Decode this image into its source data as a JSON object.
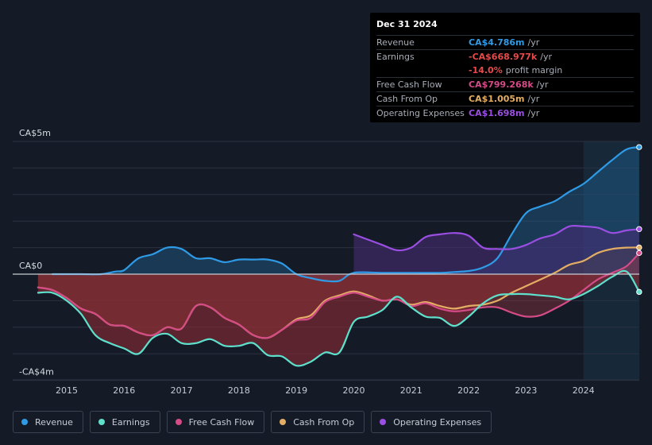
{
  "tooltip": {
    "date": "Dec 31 2024",
    "rows": [
      {
        "label": "Revenue",
        "value": "CA$4.786m",
        "unit": "/yr",
        "color": "#2f9ae6"
      },
      {
        "label": "Earnings",
        "value": "-CA$668.977k",
        "unit": "/yr",
        "color": "#e84a4a"
      },
      {
        "label": "",
        "value": "-14.0%",
        "unit": "profit margin",
        "color": "#e84a4a"
      },
      {
        "label": "Free Cash Flow",
        "value": "CA$799.268k",
        "unit": "/yr",
        "color": "#d44b87"
      },
      {
        "label": "Cash From Op",
        "value": "CA$1.005m",
        "unit": "/yr",
        "color": "#e3ad64"
      },
      {
        "label": "Operating Expenses",
        "value": "CA$1.698m",
        "unit": "/yr",
        "color": "#9a4fe2"
      }
    ]
  },
  "legend": [
    {
      "label": "Revenue",
      "color": "#2f9ae6"
    },
    {
      "label": "Earnings",
      "color": "#5fe0cc"
    },
    {
      "label": "Free Cash Flow",
      "color": "#d44b87"
    },
    {
      "label": "Cash From Op",
      "color": "#e3ad64"
    },
    {
      "label": "Operating Expenses",
      "color": "#9a4fe2"
    }
  ],
  "chart_data": {
    "type": "line",
    "title": "",
    "y_unit": "CA$m",
    "ylim": [
      -4,
      5
    ],
    "y_tick_labels": [
      {
        "value": 5,
        "label": "CA$5m"
      },
      {
        "value": 0,
        "label": "CA$0"
      },
      {
        "value": -4,
        "label": "-CA$4m"
      }
    ],
    "xlim": [
      2014.5,
      2025.0
    ],
    "x_ticks": [
      2015,
      2016,
      2017,
      2018,
      2019,
      2020,
      2021,
      2022,
      2023,
      2024
    ],
    "x_tick_labels": [
      "2015",
      "2016",
      "2017",
      "2018",
      "2019",
      "2020",
      "2021",
      "2022",
      "2023",
      "2024"
    ],
    "highlight_from": 2024.0,
    "series": [
      {
        "name": "Revenue",
        "color": "#2f9ae6",
        "x": [
          2014.75,
          2015.25,
          2015.6,
          2015.85,
          2016.0,
          2016.25,
          2016.5,
          2016.75,
          2017.0,
          2017.25,
          2017.5,
          2017.75,
          2018.0,
          2018.25,
          2018.5,
          2018.75,
          2019.0,
          2019.25,
          2019.5,
          2019.75,
          2020.0,
          2020.5,
          2021.0,
          2021.5,
          2021.75,
          2022.0,
          2022.25,
          2022.5,
          2022.75,
          2023.0,
          2023.25,
          2023.5,
          2023.75,
          2024.0,
          2024.25,
          2024.5,
          2024.75,
          2024.97
        ],
        "y": [
          0.0,
          0.0,
          0.0,
          0.1,
          0.15,
          0.6,
          0.75,
          1.0,
          0.95,
          0.6,
          0.6,
          0.45,
          0.55,
          0.55,
          0.55,
          0.4,
          0.0,
          -0.15,
          -0.25,
          -0.25,
          0.05,
          0.05,
          0.05,
          0.05,
          0.08,
          0.12,
          0.25,
          0.6,
          1.5,
          2.3,
          2.55,
          2.75,
          3.1,
          3.4,
          3.85,
          4.3,
          4.7,
          4.786
        ]
      },
      {
        "name": "Operating Expenses",
        "color": "#9a4fe2",
        "x": [
          2020.0,
          2020.25,
          2020.5,
          2020.75,
          2021.0,
          2021.25,
          2021.5,
          2021.75,
          2022.0,
          2022.25,
          2022.5,
          2022.75,
          2023.0,
          2023.25,
          2023.5,
          2023.75,
          2024.0,
          2024.25,
          2024.5,
          2024.75,
          2024.97
        ],
        "y": [
          1.5,
          1.3,
          1.1,
          0.9,
          1.0,
          1.4,
          1.5,
          1.55,
          1.45,
          1.0,
          0.95,
          0.95,
          1.1,
          1.35,
          1.5,
          1.8,
          1.8,
          1.75,
          1.55,
          1.65,
          1.698
        ]
      },
      {
        "name": "Cash From Op",
        "color": "#e3ad64",
        "x": [
          2014.5,
          2014.75,
          2015.0,
          2015.25,
          2015.5,
          2015.75,
          2016.0,
          2016.25,
          2016.5,
          2016.75,
          2017.0,
          2017.25,
          2017.5,
          2017.75,
          2018.0,
          2018.25,
          2018.5,
          2018.75,
          2019.0,
          2019.25,
          2019.5,
          2019.75,
          2020.0,
          2020.25,
          2020.5,
          2020.75,
          2021.0,
          2021.25,
          2021.5,
          2021.75,
          2022.0,
          2022.25,
          2022.5,
          2022.75,
          2023.0,
          2023.25,
          2023.5,
          2023.75,
          2024.0,
          2024.25,
          2024.5,
          2024.75,
          2024.97
        ],
        "y": [
          -0.5,
          -0.6,
          -0.9,
          -1.3,
          -1.5,
          -1.9,
          -1.95,
          -2.2,
          -2.3,
          -2.0,
          -2.05,
          -1.2,
          -1.25,
          -1.65,
          -1.9,
          -2.3,
          -2.4,
          -2.1,
          -1.7,
          -1.55,
          -1.0,
          -0.8,
          -0.65,
          -0.8,
          -1.0,
          -0.95,
          -1.15,
          -1.05,
          -1.2,
          -1.3,
          -1.2,
          -1.15,
          -1.0,
          -0.7,
          -0.45,
          -0.2,
          0.05,
          0.35,
          0.5,
          0.8,
          0.95,
          1.0,
          1.005
        ]
      },
      {
        "name": "Free Cash Flow",
        "color": "#d44b87",
        "x": [
          2014.5,
          2014.75,
          2015.0,
          2015.25,
          2015.5,
          2015.75,
          2016.0,
          2016.25,
          2016.5,
          2016.75,
          2017.0,
          2017.25,
          2017.5,
          2017.75,
          2018.0,
          2018.25,
          2018.5,
          2018.75,
          2019.0,
          2019.25,
          2019.5,
          2019.75,
          2020.0,
          2020.25,
          2020.5,
          2020.75,
          2021.0,
          2021.25,
          2021.5,
          2021.75,
          2022.0,
          2022.25,
          2022.5,
          2022.75,
          2023.0,
          2023.25,
          2023.5,
          2023.75,
          2024.0,
          2024.25,
          2024.5,
          2024.75,
          2024.97
        ],
        "y": [
          -0.5,
          -0.6,
          -0.9,
          -1.3,
          -1.5,
          -1.9,
          -1.95,
          -2.2,
          -2.3,
          -2.0,
          -2.05,
          -1.2,
          -1.25,
          -1.65,
          -1.9,
          -2.3,
          -2.4,
          -2.1,
          -1.75,
          -1.65,
          -1.05,
          -0.85,
          -0.7,
          -0.85,
          -1.0,
          -0.95,
          -1.2,
          -1.1,
          -1.3,
          -1.4,
          -1.35,
          -1.25,
          -1.25,
          -1.45,
          -1.6,
          -1.55,
          -1.3,
          -1.0,
          -0.6,
          -0.2,
          0.05,
          0.3,
          0.799
        ]
      },
      {
        "name": "Earnings",
        "color": "#5fe0cc",
        "x": [
          2014.5,
          2014.75,
          2015.0,
          2015.25,
          2015.5,
          2015.75,
          2016.0,
          2016.25,
          2016.5,
          2016.75,
          2017.0,
          2017.25,
          2017.5,
          2017.75,
          2018.0,
          2018.25,
          2018.5,
          2018.75,
          2019.0,
          2019.25,
          2019.5,
          2019.75,
          2020.0,
          2020.25,
          2020.5,
          2020.75,
          2021.0,
          2021.25,
          2021.5,
          2021.75,
          2022.0,
          2022.25,
          2022.5,
          2022.75,
          2023.0,
          2023.25,
          2023.5,
          2023.75,
          2024.0,
          2024.25,
          2024.5,
          2024.75,
          2024.97
        ],
        "y": [
          -0.7,
          -0.7,
          -1.0,
          -1.5,
          -2.3,
          -2.6,
          -2.8,
          -3.0,
          -2.4,
          -2.25,
          -2.6,
          -2.6,
          -2.45,
          -2.7,
          -2.7,
          -2.6,
          -3.05,
          -3.1,
          -3.45,
          -3.3,
          -2.95,
          -2.95,
          -1.8,
          -1.6,
          -1.35,
          -0.85,
          -1.25,
          -1.6,
          -1.65,
          -1.95,
          -1.6,
          -1.1,
          -0.8,
          -0.75,
          -0.75,
          -0.8,
          -0.85,
          -0.95,
          -0.75,
          -0.45,
          -0.1,
          0.1,
          -0.669
        ]
      }
    ]
  }
}
